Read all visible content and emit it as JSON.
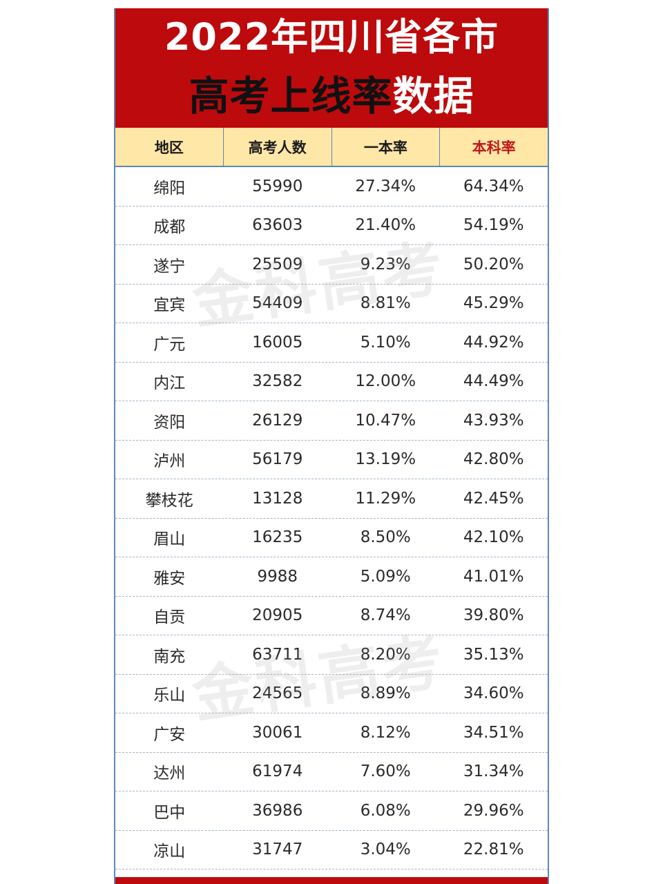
{
  "title": {
    "line1": "2022年四川省各市",
    "line2_dark": "高考上线率",
    "line2_light": "数据"
  },
  "watermark_text": "金科高考",
  "colors": {
    "banner_red": "#bd0a0c",
    "header_yellow": "#ffe7a8",
    "accent_red": "#c0191b",
    "border_blue": "#5f86b5"
  },
  "table": {
    "headers": [
      "地区",
      "高考人数",
      "一本率",
      "本科率"
    ],
    "rows": [
      [
        "绵阳",
        "55990",
        "27.34%",
        "64.34%"
      ],
      [
        "成都",
        "63603",
        "21.40%",
        "54.19%"
      ],
      [
        "遂宁",
        "25509",
        "9.23%",
        "50.20%"
      ],
      [
        "宜宾",
        "54409",
        "8.81%",
        "45.29%"
      ],
      [
        "广元",
        "16005",
        "5.10%",
        "44.92%"
      ],
      [
        "内江",
        "32582",
        "12.00%",
        "44.49%"
      ],
      [
        "资阳",
        "26129",
        "10.47%",
        "43.93%"
      ],
      [
        "泸州",
        "56179",
        "13.19%",
        "42.80%"
      ],
      [
        "攀枝花",
        "13128",
        "11.29%",
        "42.45%"
      ],
      [
        "眉山",
        "16235",
        "8.50%",
        "42.10%"
      ],
      [
        "雅安",
        "9988",
        "5.09%",
        "41.01%"
      ],
      [
        "自贡",
        "20905",
        "8.74%",
        "39.80%"
      ],
      [
        "南充",
        "63711",
        "8.20%",
        "35.13%"
      ],
      [
        "乐山",
        "24565",
        "8.89%",
        "34.60%"
      ],
      [
        "广安",
        "30061",
        "8.12%",
        "34.51%"
      ],
      [
        "达州",
        "61974",
        "7.60%",
        "31.34%"
      ],
      [
        "巴中",
        "36986",
        "6.08%",
        "29.96%"
      ],
      [
        "凉山",
        "31747",
        "3.04%",
        "22.81%"
      ]
    ]
  }
}
